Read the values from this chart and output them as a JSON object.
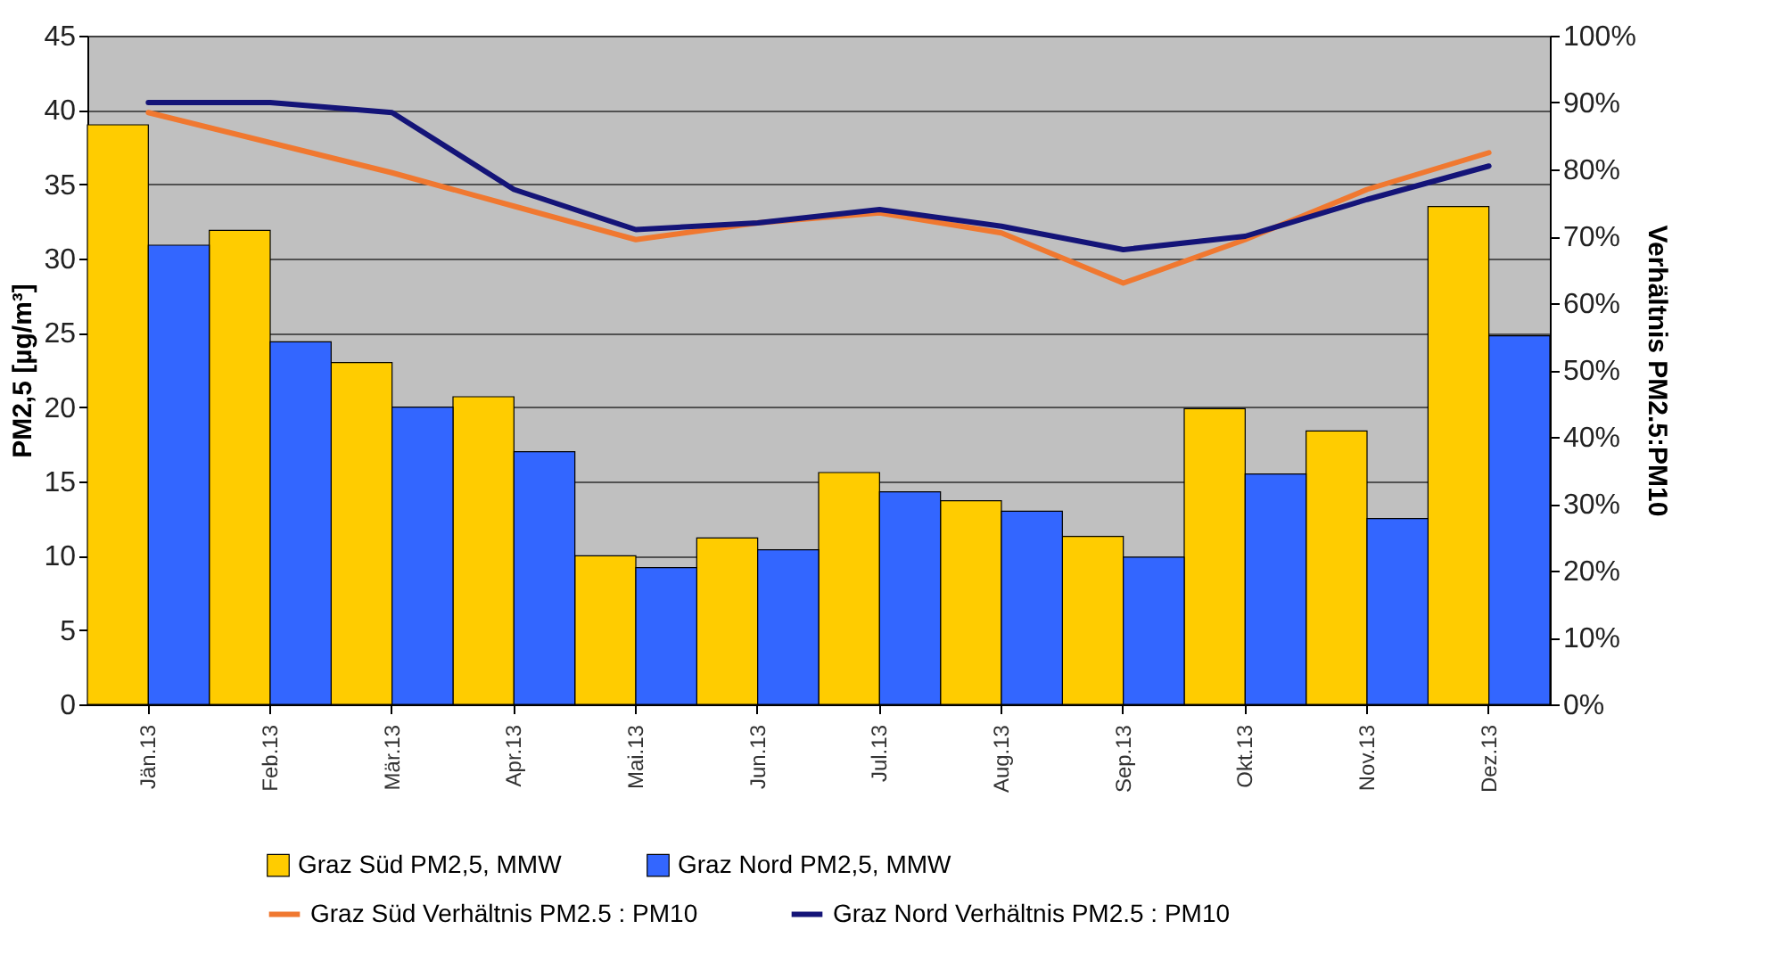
{
  "chart_data": {
    "type": "bar",
    "ylabel": "PM2,5 [µg/m³]",
    "y2label": "Verhältnis PM2.5:PM10",
    "categories": [
      "Jän.13",
      "Feb.13",
      "Mär.13",
      "Apr.13",
      "Mai.13",
      "Jun.13",
      "Jul.13",
      "Aug.13",
      "Sep.13",
      "Okt.13",
      "Nov.13",
      "Dez.13"
    ],
    "series": [
      {
        "name": "Graz Süd PM2,5, MMW",
        "color": "#ffcc00",
        "values": [
          39,
          31.9,
          23,
          20.7,
          10,
          11.2,
          15.6,
          13.7,
          11.3,
          19.9,
          18.4,
          33.5
        ]
      },
      {
        "name": "Graz Nord PM2,5, MMW",
        "color": "#3366ff",
        "values": [
          30.9,
          24.4,
          20,
          17,
          9.2,
          10.4,
          14.3,
          13,
          9.9,
          15.5,
          12.5,
          24.8
        ]
      },
      {
        "name": "Graz Süd Verhältnis PM2.5 : PM10",
        "type": "line",
        "axis": "y2",
        "color": "#f07830",
        "values": [
          88.5,
          84,
          79.5,
          74.5,
          69.5,
          72,
          73.5,
          70.5,
          63,
          69.5,
          77,
          82.5
        ]
      },
      {
        "name": "Graz Nord Verhältnis PM2.5 : PM10",
        "type": "line",
        "axis": "y2",
        "color": "#141478",
        "values": [
          90,
          90,
          88.5,
          77,
          71,
          72,
          74,
          71.5,
          68,
          70,
          75.5,
          80.5
        ]
      }
    ],
    "ylim": [
      0,
      45
    ],
    "yticks": [
      0,
      5,
      10,
      15,
      20,
      25,
      30,
      35,
      40,
      45
    ],
    "y2lim": [
      0,
      100
    ],
    "y2ticks": [
      {
        "value": 0,
        "label": "0%"
      },
      {
        "value": 10,
        "label": "10%"
      },
      {
        "value": 20,
        "label": "20%"
      },
      {
        "value": 30,
        "label": "30%"
      },
      {
        "value": 40,
        "label": "40%"
      },
      {
        "value": 50,
        "label": "50%"
      },
      {
        "value": 60,
        "label": "60%"
      },
      {
        "value": 70,
        "label": "70%"
      },
      {
        "value": 80,
        "label": "80%"
      },
      {
        "value": 90,
        "label": "90%"
      },
      {
        "value": 100,
        "label": "100%"
      }
    ],
    "grid": "y",
    "legend": "bottom"
  }
}
